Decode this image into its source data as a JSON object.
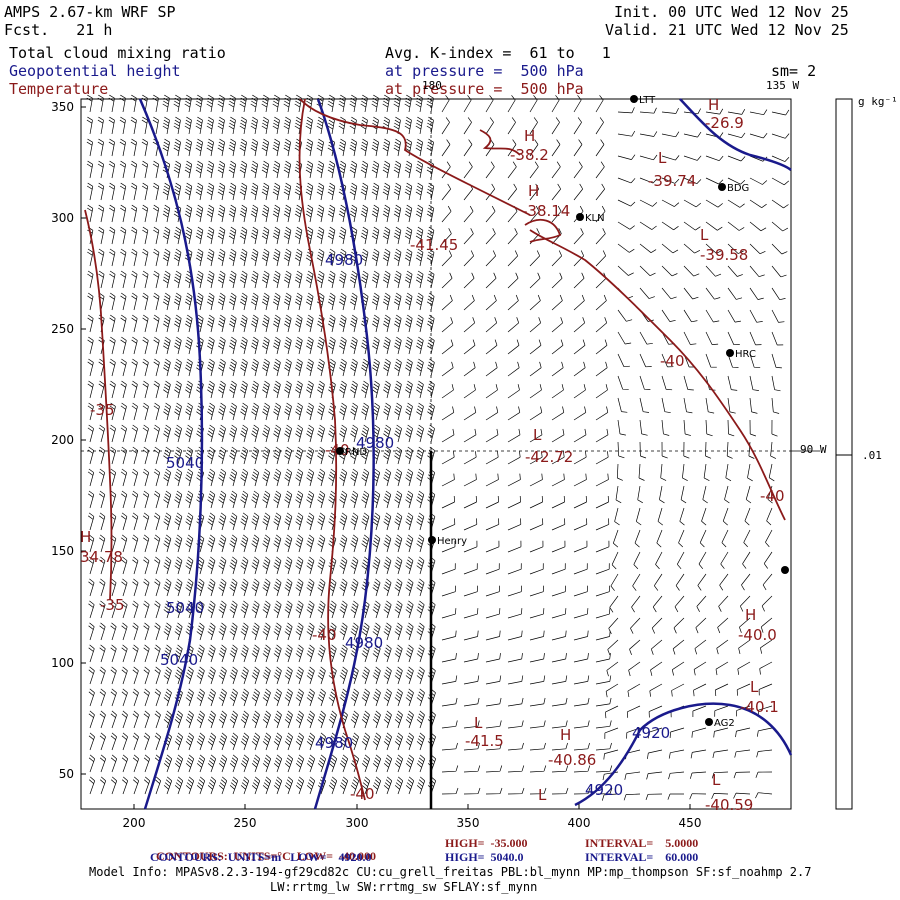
{
  "header": {
    "model": "AMPS 2.67-km WRF SP",
    "fcst": "Fcst.   21 h",
    "init": "Init. 00 UTC Wed 12 Nov 25",
    "valid": "Valid. 21 UTC Wed 12 Nov 25",
    "field1": "Total cloud mixing ratio",
    "field2": "Geopotential height",
    "field3": "Temperature",
    "avg": "Avg. K-index =  61 to   1",
    "pressure1": "at pressure =  500 hPa",
    "pressure2": "at pressure =  500 hPa",
    "sm": "sm= 2"
  },
  "map": {
    "lon_top": "180",
    "lon_top_right": "135 W",
    "lon_right": "90 W",
    "x_ticks": [
      "200",
      "250",
      "300",
      "350",
      "400",
      "450"
    ],
    "y_ticks": [
      "350",
      "300",
      "250",
      "200",
      "150",
      "100",
      "50"
    ],
    "stations": [
      {
        "name": "LTT"
      },
      {
        "name": "BDG"
      },
      {
        "name": "KLN"
      },
      {
        "name": "HRC"
      },
      {
        "name": "RND"
      },
      {
        "name": "Henry"
      },
      {
        "name": "AG2"
      },
      {
        "name": ""
      }
    ],
    "temp_labels": [
      "-38.2",
      "-39.74",
      "-38.14",
      "-41.45",
      "-39.58",
      "-40",
      "-35",
      "-40",
      "-42.72",
      "-40",
      "34.78",
      "-35",
      "-40",
      "-40.0",
      "-41.5",
      "-40.86",
      "-40.1",
      "-40.59",
      "-40",
      "-26.9"
    ],
    "height_labels": [
      "4980",
      "4980",
      "5040",
      "5040",
      "5040",
      "4980",
      "4980",
      "4920",
      "4920"
    ],
    "hl_labels": [
      "H",
      "H",
      "L",
      "L",
      "L",
      "H",
      "L",
      "H",
      "H",
      "L",
      "L",
      "L",
      "H"
    ]
  },
  "colorbar": {
    "unit": "g kg⁻¹",
    "value": ".01"
  },
  "footer": {
    "c1_label": "CONTOURS:  UNITS=°C  LOW=  -40.000",
    "c1_high": "HIGH=  -35.000",
    "c1_int": "INTERVAL=    5.0000",
    "c2_label": "CONTOURS:  UNITS=m   LOW=    4920.0",
    "c2_high": "HIGH=  5040.0",
    "c2_int": "INTERVAL=    60.000",
    "info1": "Model Info: MPASv8.2.3-194-gf29cd82c CU:cu_grell_freitas PBL:bl_mynn MP:mp_thompson SF:sf_noahmp 2.7",
    "info2": "LW:rrtmg_lw SW:rrtmg_sw SFLAY:sf_mynn"
  },
  "colors": {
    "temperature": "#8b1a1a",
    "height": "#1a1a8c",
    "field": "#1a1a8c"
  }
}
